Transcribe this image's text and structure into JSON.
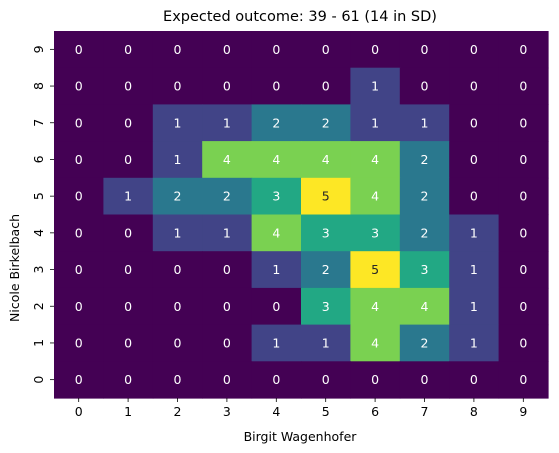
{
  "chart_data": {
    "type": "heatmap",
    "title": "Expected outcome: 39 - 61 (14 in SD)",
    "xlabel": "Birgit Wagenhofer",
    "ylabel": "Nicole Birkelbach",
    "x_ticks": [
      "0",
      "1",
      "2",
      "3",
      "4",
      "5",
      "6",
      "7",
      "8",
      "9"
    ],
    "y_ticks_top_to_bottom": [
      "9",
      "8",
      "7",
      "6",
      "5",
      "4",
      "3",
      "2",
      "1",
      "0"
    ],
    "colormap": "viridis",
    "vmin": 0,
    "vmax": 5,
    "annotated": true,
    "colorbar": false,
    "rows_top_to_bottom": [
      [
        0,
        0,
        0,
        0,
        0,
        0,
        0,
        0,
        0,
        0
      ],
      [
        0,
        0,
        0,
        0,
        0,
        0,
        1,
        0,
        0,
        0
      ],
      [
        0,
        0,
        1,
        1,
        2,
        2,
        1,
        1,
        0,
        0
      ],
      [
        0,
        0,
        1,
        4,
        4,
        4,
        4,
        2,
        0,
        0
      ],
      [
        0,
        1,
        2,
        2,
        3,
        5,
        4,
        2,
        0,
        0
      ],
      [
        0,
        0,
        1,
        1,
        4,
        3,
        3,
        2,
        1,
        0
      ],
      [
        0,
        0,
        0,
        0,
        1,
        2,
        5,
        3,
        1,
        0
      ],
      [
        0,
        0,
        0,
        0,
        0,
        3,
        4,
        4,
        1,
        0
      ],
      [
        0,
        0,
        0,
        0,
        1,
        1,
        4,
        2,
        1,
        0
      ],
      [
        0,
        0,
        0,
        0,
        0,
        0,
        0,
        0,
        0,
        0
      ]
    ],
    "colors": {
      "0": "#440154",
      "1": "#414487",
      "2": "#2a788e",
      "3": "#22a884",
      "4": "#7ad151",
      "5": "#fde725"
    },
    "label_colors": {
      "light": "#ffffff",
      "dark": "#262626"
    }
  }
}
